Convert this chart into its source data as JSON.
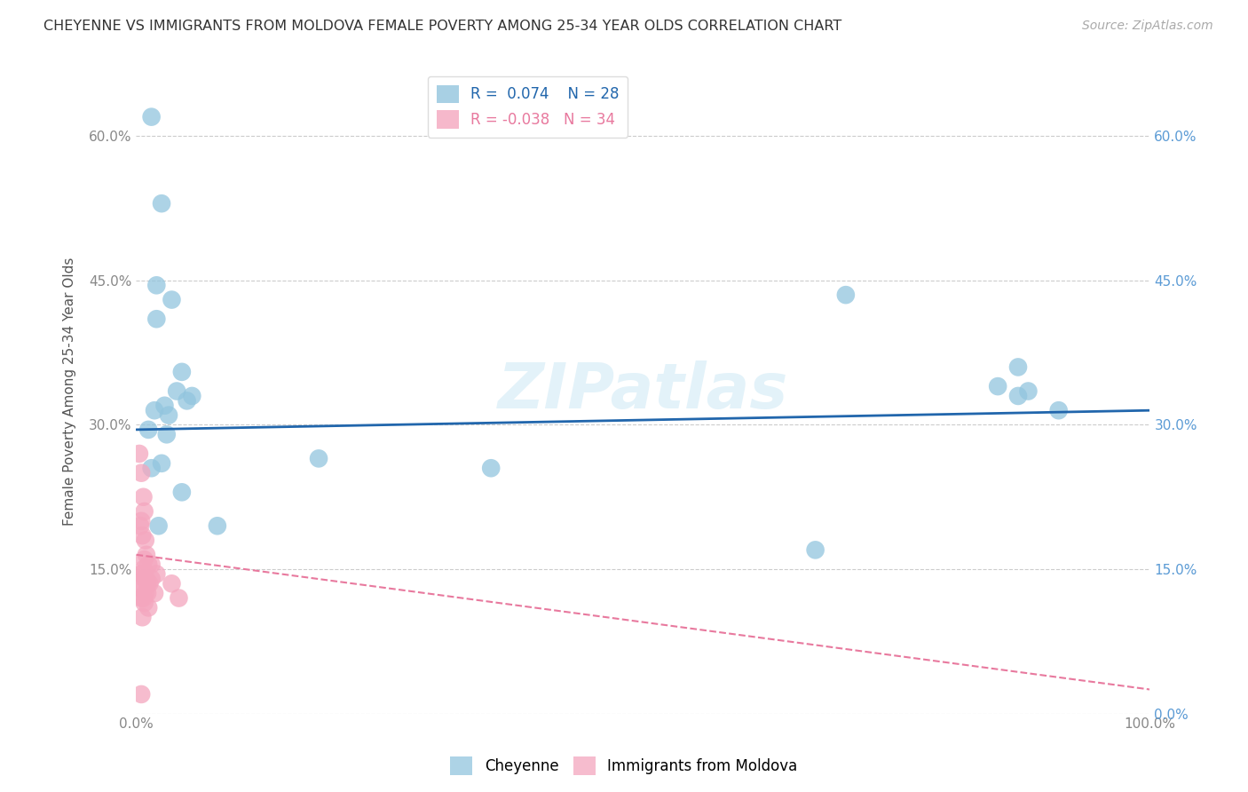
{
  "title": "CHEYENNE VS IMMIGRANTS FROM MOLDOVA FEMALE POVERTY AMONG 25-34 YEAR OLDS CORRELATION CHART",
  "source": "Source: ZipAtlas.com",
  "ylabel": "Female Poverty Among 25-34 Year Olds",
  "watermark": "ZIPatlas",
  "cheyenne_x": [
    1.5,
    2.5,
    2.0,
    3.5,
    2.0,
    4.5,
    5.5,
    2.8,
    1.8,
    3.2,
    5.0,
    1.2,
    4.0,
    3.0,
    2.5,
    18.0,
    35.0,
    70.0,
    87.0,
    91.0,
    88.0,
    67.0,
    85.0,
    87.0,
    1.5,
    2.2,
    4.5,
    8.0
  ],
  "cheyenne_y": [
    62.0,
    53.0,
    44.5,
    43.0,
    41.0,
    35.5,
    33.0,
    32.0,
    31.5,
    31.0,
    32.5,
    29.5,
    33.5,
    29.0,
    26.0,
    26.5,
    25.5,
    43.5,
    36.0,
    31.5,
    33.5,
    17.0,
    34.0,
    33.0,
    25.5,
    19.5,
    23.0,
    19.5
  ],
  "moldova_x": [
    0.3,
    0.5,
    0.7,
    0.8,
    0.5,
    0.4,
    0.6,
    0.9,
    1.0,
    0.8,
    1.2,
    1.5,
    0.7,
    0.5,
    0.6,
    0.8,
    1.0,
    1.1,
    1.3,
    0.4,
    0.6,
    0.9,
    1.1,
    0.5,
    0.7,
    1.5,
    2.0,
    3.5,
    1.8,
    4.2,
    0.8,
    1.2,
    0.6,
    0.5
  ],
  "moldova_y": [
    27.0,
    25.0,
    22.5,
    21.0,
    20.0,
    19.5,
    18.5,
    18.0,
    16.5,
    16.0,
    15.5,
    15.5,
    15.0,
    14.5,
    14.5,
    14.0,
    14.0,
    13.5,
    13.5,
    13.0,
    13.0,
    12.5,
    12.5,
    12.0,
    12.0,
    14.0,
    14.5,
    13.5,
    12.5,
    12.0,
    11.5,
    11.0,
    10.0,
    2.0
  ],
  "R_cheyenne": 0.074,
  "N_cheyenne": 28,
  "R_moldova": -0.038,
  "N_moldova": 34,
  "cheyenne_color": "#92c5de",
  "moldova_color": "#f4a6be",
  "cheyenne_line_color": "#2166ac",
  "moldova_line_color": "#e8799e",
  "cheyenne_line_y0": 29.5,
  "cheyenne_line_y1": 31.5,
  "moldova_line_y0": 16.5,
  "moldova_line_y1": 2.5,
  "xlim": [
    0,
    100
  ],
  "ylim": [
    0,
    67
  ],
  "yticks": [
    0,
    15,
    30,
    45,
    60
  ],
  "ytick_labels": [
    "",
    "15.0%",
    "30.0%",
    "45.0%",
    "60.0%"
  ],
  "right_ytick_labels": [
    "0.0%",
    "15.0%",
    "30.0%",
    "45.0%",
    "60.0%"
  ],
  "xticks": [
    0,
    25,
    50,
    75,
    100
  ],
  "xtick_labels": [
    "0.0%",
    "",
    "",
    "",
    "100.0%"
  ],
  "legend_cheyenne": "Cheyenne",
  "legend_moldova": "Immigrants from Moldova",
  "background_color": "#ffffff",
  "grid_color": "#cccccc"
}
